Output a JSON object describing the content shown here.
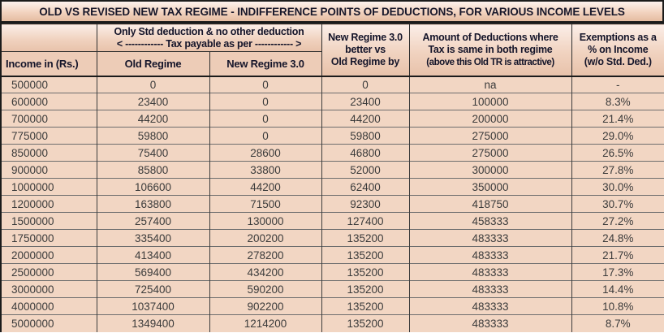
{
  "title": "OLD VS REVISED NEW TAX REGIME - INDIFFERENCE POINTS OF DEDUCTIONS, FOR VARIOUS INCOME LEVELS",
  "table": {
    "group_header": {
      "line1": "Only Std deduction & no other deduction",
      "line2": "< ------------ Tax payable as per ------------ >"
    },
    "headers": {
      "income": "Income in (Rs.)",
      "old_regime": "Old Regime",
      "new_regime": "New Regime 3.0",
      "better_by": {
        "line1": "New Regime 3.0",
        "line2": "better vs",
        "line3": "Old Regime by"
      },
      "deductions": {
        "line1": "Amount of Deductions where",
        "line2": "Tax is same in both regime",
        "line3": "(above this Old TR is attractive)"
      },
      "exemptions": {
        "line1": "Exemptions as a",
        "line2": "% on Income",
        "line3": "(w/o Std. Ded.)"
      }
    },
    "column_keys": [
      "income",
      "old-regime-tax",
      "new-regime-tax",
      "better-by",
      "deductions-indifference",
      "exemption-pct"
    ],
    "rows": [
      [
        "500000",
        "0",
        "0",
        "0",
        "na",
        "-"
      ],
      [
        "600000",
        "23400",
        "0",
        "23400",
        "100000",
        "8.3%"
      ],
      [
        "700000",
        "44200",
        "0",
        "44200",
        "200000",
        "21.4%"
      ],
      [
        "775000",
        "59800",
        "0",
        "59800",
        "275000",
        "29.0%"
      ],
      [
        "850000",
        "75400",
        "28600",
        "46800",
        "275000",
        "26.5%"
      ],
      [
        "900000",
        "85800",
        "33800",
        "52000",
        "300000",
        "27.8%"
      ],
      [
        "1000000",
        "106600",
        "44200",
        "62400",
        "350000",
        "30.0%"
      ],
      [
        "1200000",
        "163800",
        "71500",
        "92300",
        "418750",
        "30.7%"
      ],
      [
        "1500000",
        "257400",
        "130000",
        "127400",
        "458333",
        "27.2%"
      ],
      [
        "1750000",
        "335400",
        "200200",
        "135200",
        "483333",
        "24.8%"
      ],
      [
        "2000000",
        "413400",
        "278200",
        "135200",
        "483333",
        "21.7%"
      ],
      [
        "2500000",
        "569400",
        "434200",
        "135200",
        "483333",
        "17.3%"
      ],
      [
        "3000000",
        "725400",
        "590200",
        "135200",
        "483333",
        "14.4%"
      ],
      [
        "4000000",
        "1037400",
        "902200",
        "135200",
        "483333",
        "10.8%"
      ],
      [
        "5000000",
        "1349400",
        "1214200",
        "135200",
        "483333",
        "8.7%"
      ]
    ]
  },
  "colors": {
    "cell_bg": "#f2d6c3",
    "subheader_bg": "#edccb7",
    "header_gradient_top": "#fbeee8",
    "header_gradient_bottom": "#e8c2aa",
    "outer_border": "#1b1b1b",
    "header_text": "#15152a",
    "data_text": "#3b3b3b"
  }
}
